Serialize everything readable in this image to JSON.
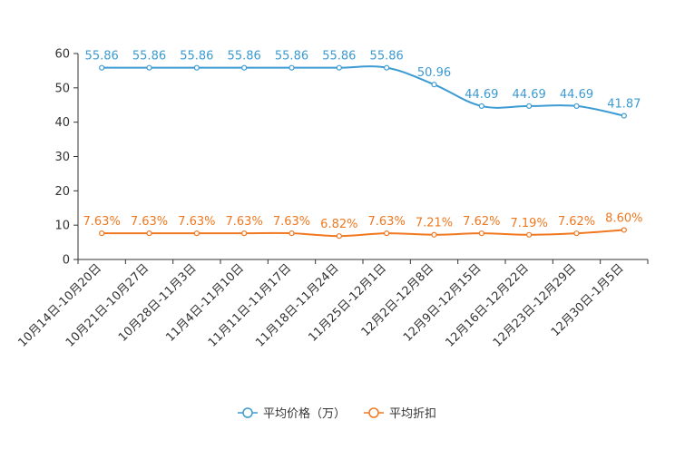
{
  "chart_data": {
    "type": "line",
    "title": "",
    "xlabel": "",
    "ylabel": "",
    "ylim": [
      0,
      60
    ],
    "yticks": [
      0,
      10,
      20,
      30,
      40,
      50,
      60
    ],
    "grid": false,
    "legend_position": "bottom-center",
    "categories": [
      "10月14日-10月20日",
      "10月21日-10月27日",
      "10月28日-11月3日",
      "11月4日-11月10日",
      "11月11日-11月17日",
      "11月18日-11月24日",
      "11月25日-12月1日",
      "12月2日-12月8日",
      "12月9日-12月15日",
      "12月16日-12月22日",
      "12月23日-12月29日",
      "12月30日-1月5日"
    ],
    "series": [
      {
        "name": "平均价格（万）",
        "color": "#3c9bd2",
        "values": [
          55.86,
          55.86,
          55.86,
          55.86,
          55.86,
          55.86,
          55.86,
          50.96,
          44.69,
          44.69,
          44.69,
          41.87
        ],
        "labels": [
          "55.86",
          "55.86",
          "55.86",
          "55.86",
          "55.86",
          "55.86",
          "55.86",
          "50.96",
          "44.69",
          "44.69",
          "44.69",
          "41.87"
        ]
      },
      {
        "name": "平均折扣",
        "color": "#f07820",
        "values": [
          7.63,
          7.63,
          7.63,
          7.63,
          7.63,
          6.82,
          7.63,
          7.21,
          7.62,
          7.19,
          7.62,
          8.6
        ],
        "labels": [
          "7.63%",
          "7.63%",
          "7.63%",
          "7.63%",
          "7.63%",
          "6.82%",
          "7.63%",
          "7.21%",
          "7.62%",
          "7.19%",
          "7.62%",
          "8.60%"
        ]
      }
    ]
  }
}
